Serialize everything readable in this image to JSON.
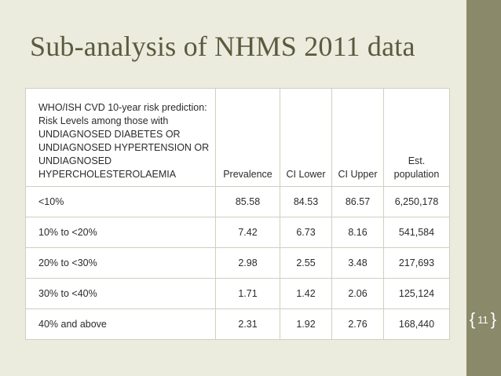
{
  "slide": {
    "title": "Sub-analysis of NHMS 2011 data",
    "number": "11",
    "colors": {
      "background": "#ebebde",
      "side_bar": "#8a8a6a",
      "title": "#5a5a3e"
    }
  },
  "table": {
    "headers": [
      "WHO/ISH CVD 10-year risk prediction: Risk Levels among those with UNDIAGNOSED DIABETES OR UNDIAGNOSED HYPERTENSION OR UNDIAGNOSED HYPERCHOLESTEROLAEMIA",
      "Prevalence",
      "CI Lower",
      "CI Upper",
      "Est. population"
    ],
    "rows": [
      [
        "<10%",
        "85.58",
        "84.53",
        "86.57",
        "6,250,178"
      ],
      [
        "10% to <20%",
        "7.42",
        "6.73",
        "8.16",
        "541,584"
      ],
      [
        "20% to <30%",
        "2.98",
        "2.55",
        "3.48",
        "217,693"
      ],
      [
        "30% to <40%",
        "1.71",
        "1.42",
        "2.06",
        "125,124"
      ],
      [
        "40% and above",
        "2.31",
        "1.92",
        "2.76",
        "168,440"
      ]
    ]
  }
}
